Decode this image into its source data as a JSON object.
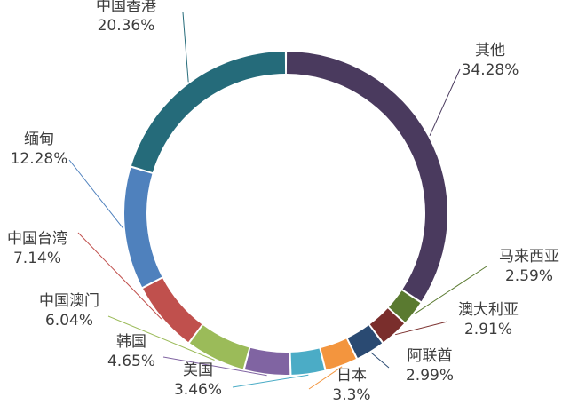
{
  "chart_data": {
    "type": "pie",
    "variant": "donut",
    "title": "",
    "slices": [
      {
        "label": "其他",
        "value_label": "34.28%",
        "value": 34.28,
        "color": "#4a3a5e"
      },
      {
        "label": "马来西亚",
        "value_label": "2.59%",
        "value": 2.59,
        "color": "#5a7a30"
      },
      {
        "label": "澳大利亚",
        "value_label": "2.91%",
        "value": 2.91,
        "color": "#7a2e2c"
      },
      {
        "label": "阿联酋",
        "value_label": "2.99%",
        "value": 2.99,
        "color": "#2a4a72"
      },
      {
        "label": "日本",
        "value_label": "3.3%",
        "value": 3.3,
        "color": "#f3953e"
      },
      {
        "label": "美国",
        "value_label": "3.46%",
        "value": 3.46,
        "color": "#4bacc6"
      },
      {
        "label": "韩国",
        "value_label": "4.65%",
        "value": 4.65,
        "color": "#8064a2"
      },
      {
        "label": "中国澳门",
        "value_label": "6.04%",
        "value": 6.04,
        "color": "#9bbb59"
      },
      {
        "label": "中国台湾",
        "value_label": "7.14%",
        "value": 7.14,
        "color": "#c0504d"
      },
      {
        "label": "缅甸",
        "value_label": "12.28%",
        "value": 12.28,
        "color": "#4f81bd"
      },
      {
        "label": "中国香港",
        "value_label": "20.36%",
        "value": 20.36,
        "color": "#256b7a"
      }
    ],
    "start_angle_deg": 0,
    "direction": "clockwise",
    "legend": "none",
    "data_labels": "outside-with-leader-lines"
  }
}
